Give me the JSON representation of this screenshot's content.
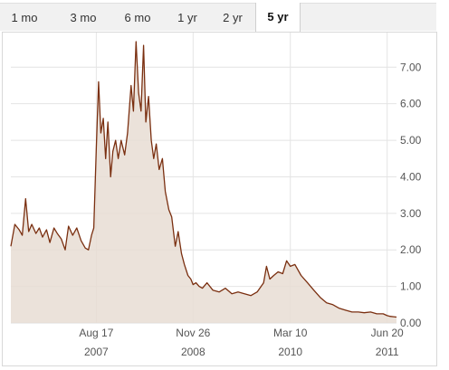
{
  "tabs": [
    {
      "label": "1 mo",
      "active": false
    },
    {
      "label": "3 mo",
      "active": false
    },
    {
      "label": "6 mo",
      "active": false
    },
    {
      "label": "1 yr",
      "active": false
    },
    {
      "label": "2 yr",
      "active": false
    },
    {
      "label": "5 yr",
      "active": true
    }
  ],
  "chart_data": {
    "type": "area",
    "title": "",
    "xlabel": "",
    "ylabel": "",
    "ylim": [
      0,
      7.75
    ],
    "y_ticks": [
      "0.00",
      "1.00",
      "2.00",
      "3.00",
      "4.00",
      "5.00",
      "6.00",
      "7.00"
    ],
    "x_ticks": [
      {
        "label": "Aug 17",
        "year": "2007",
        "x": "2007-08-17"
      },
      {
        "label": "Nov 26",
        "year": "2008",
        "x": "2008-11-26"
      },
      {
        "label": "Mar 10",
        "year": "2010",
        "x": "2010-03-10"
      },
      {
        "label": "Jun 20",
        "year": "2011",
        "x": "2011-06-20"
      }
    ],
    "grid": true,
    "colors": {
      "line": "#7a2f10",
      "fill": "#e8ddd3",
      "grid": "#e4e4e4"
    },
    "series": [
      {
        "x": [
          "2006-07-01",
          "2006-07-20",
          "2006-08-10",
          "2006-08-25",
          "2006-09-10",
          "2006-09-25",
          "2006-10-10",
          "2006-10-30",
          "2006-11-15",
          "2006-12-01",
          "2006-12-20",
          "2007-01-05",
          "2007-01-25",
          "2007-02-10",
          "2007-03-01",
          "2007-03-20",
          "2007-04-05",
          "2007-04-25",
          "2007-05-15",
          "2007-06-05",
          "2007-06-25",
          "2007-07-10",
          "2007-07-25",
          "2007-08-05",
          "2007-08-17",
          "2007-08-28",
          "2007-09-08",
          "2007-09-20",
          "2007-10-01",
          "2007-10-12",
          "2007-10-25",
          "2007-11-05",
          "2007-11-18",
          "2007-12-01",
          "2007-12-15",
          "2008-01-01",
          "2008-01-15",
          "2008-02-01",
          "2008-02-12",
          "2008-02-25",
          "2008-03-08",
          "2008-03-20",
          "2008-04-01",
          "2008-04-12",
          "2008-04-25",
          "2008-05-08",
          "2008-05-20",
          "2008-06-01",
          "2008-06-15",
          "2008-07-01",
          "2008-07-15",
          "2008-08-01",
          "2008-08-15",
          "2008-09-01",
          "2008-09-15",
          "2008-10-01",
          "2008-10-15",
          "2008-11-01",
          "2008-11-15",
          "2008-11-26",
          "2008-12-10",
          "2008-12-25",
          "2009-01-10",
          "2009-02-01",
          "2009-03-01",
          "2009-04-01",
          "2009-05-01",
          "2009-06-01",
          "2009-07-01",
          "2009-08-01",
          "2009-09-01",
          "2009-10-01",
          "2009-10-20",
          "2009-11-01",
          "2009-11-15",
          "2009-12-01",
          "2009-12-20",
          "2010-01-10",
          "2010-02-01",
          "2010-02-20",
          "2010-03-10",
          "2010-04-01",
          "2010-05-01",
          "2010-06-01",
          "2010-07-01",
          "2010-08-01",
          "2010-09-01",
          "2010-10-01",
          "2010-11-01",
          "2010-12-01",
          "2011-01-01",
          "2011-02-01",
          "2011-03-01",
          "2011-04-01",
          "2011-05-01",
          "2011-06-01",
          "2011-06-20",
          "2011-07-05",
          "2011-07-20",
          "2011-08-04"
        ],
        "values": [
          2.1,
          2.7,
          2.55,
          2.4,
          3.4,
          2.5,
          2.7,
          2.45,
          2.6,
          2.35,
          2.55,
          2.2,
          2.6,
          2.45,
          2.3,
          2.0,
          2.65,
          2.4,
          2.6,
          2.25,
          2.05,
          2.0,
          2.4,
          2.6,
          4.8,
          6.6,
          5.2,
          5.6,
          4.5,
          5.5,
          4.0,
          4.7,
          5.0,
          4.5,
          5.0,
          4.6,
          5.2,
          6.5,
          5.8,
          7.7,
          6.3,
          5.8,
          7.6,
          5.5,
          6.2,
          5.0,
          4.5,
          4.9,
          4.2,
          4.5,
          3.6,
          3.1,
          2.9,
          2.1,
          2.5,
          1.9,
          1.6,
          1.3,
          1.2,
          1.05,
          1.1,
          1.0,
          0.95,
          1.1,
          0.9,
          0.85,
          0.95,
          0.8,
          0.85,
          0.8,
          0.75,
          0.85,
          1.0,
          1.1,
          1.55,
          1.2,
          1.3,
          1.4,
          1.35,
          1.7,
          1.55,
          1.6,
          1.3,
          1.1,
          0.9,
          0.7,
          0.55,
          0.5,
          0.4,
          0.35,
          0.3,
          0.3,
          0.28,
          0.3,
          0.25,
          0.25,
          0.2,
          0.18,
          0.17,
          0.16
        ]
      }
    ]
  }
}
